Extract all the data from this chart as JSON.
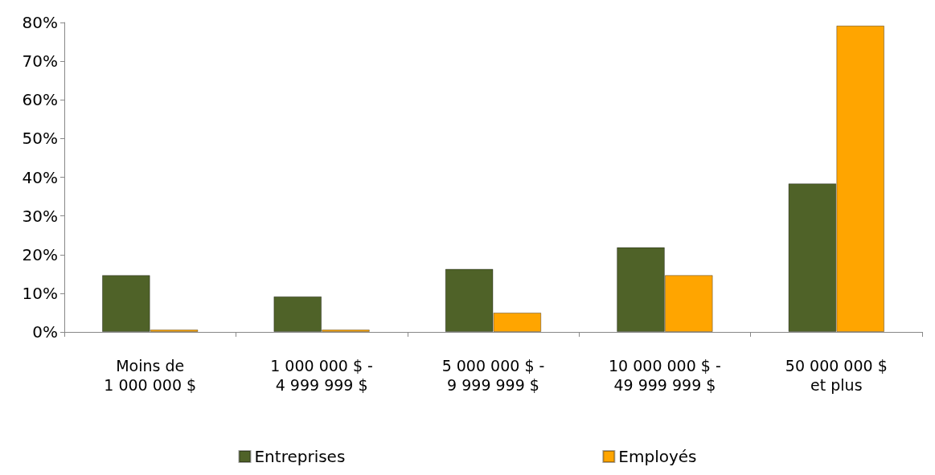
{
  "chart_data": {
    "type": "bar",
    "categories": [
      "Moins de\n1 000 000 $",
      "1 000 000 $ -\n4 999 999 $",
      "5 000 000 $ -\n9 999 999 $",
      "10 000 000 $ -\n49 999 999 $",
      "50 000 000 $\net plus"
    ],
    "series": [
      {
        "name": "Entreprises",
        "color": "#4f6228",
        "values": [
          14.7,
          9.2,
          16.3,
          21.9,
          38.4
        ]
      },
      {
        "name": "Employés",
        "color": "#ffa500",
        "values": [
          0.6,
          0.6,
          5.0,
          14.7,
          79.2
        ]
      }
    ],
    "ylim": [
      0,
      80
    ],
    "yticks": [
      {
        "value": 0,
        "label": "0%"
      },
      {
        "value": 10,
        "label": "10%"
      },
      {
        "value": 20,
        "label": "20%"
      },
      {
        "value": 30,
        "label": "30%"
      },
      {
        "value": 40,
        "label": "40%"
      },
      {
        "value": 50,
        "label": "50%"
      },
      {
        "value": 60,
        "label": "60%"
      },
      {
        "value": 70,
        "label": "70%"
      },
      {
        "value": 80,
        "label": "80%"
      }
    ],
    "grid": false,
    "legend": "bottom"
  }
}
